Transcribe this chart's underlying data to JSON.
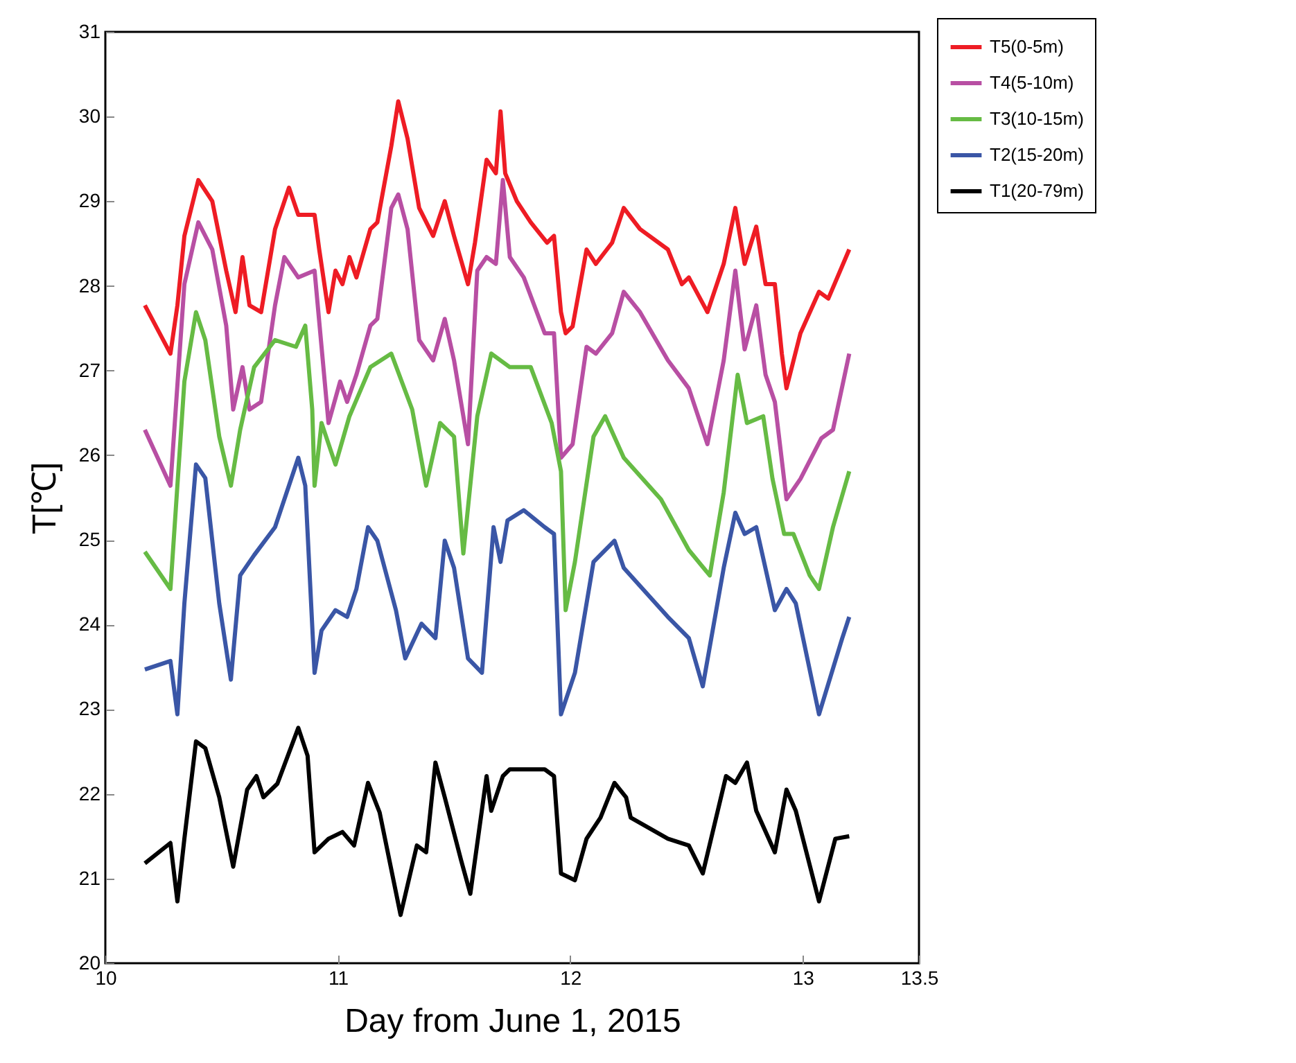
{
  "chart_data": {
    "type": "line",
    "xlabel": "Day from June 1, 2015",
    "ylabel": "T[℃]",
    "xlim": [
      10,
      13.5
    ],
    "xticks": [
      10,
      11,
      12,
      13,
      13.5
    ],
    "ylim": [
      20,
      31
    ],
    "yticks": [
      20,
      21,
      22,
      23,
      24,
      25,
      26,
      27,
      28,
      29,
      30,
      31
    ],
    "grid": false,
    "legend": "top right",
    "line_style": "solid",
    "marker": "none",
    "series": [
      {
        "name": "T5(0-5m)",
        "color": "#ee1c24",
        "x": [
          10.17,
          10.28,
          10.31,
          10.34,
          10.4,
          10.46,
          10.52,
          10.56,
          10.59,
          10.62,
          10.67,
          10.73,
          10.79,
          10.83,
          10.9,
          10.92,
          10.96,
          10.99,
          11.02,
          11.05,
          11.08,
          11.14,
          11.17,
          11.23,
          11.26,
          11.3,
          11.35,
          11.41,
          11.46,
          11.5,
          11.56,
          11.59,
          11.64,
          11.68,
          11.7,
          11.72,
          11.77,
          11.83,
          11.9,
          11.93,
          11.96,
          11.98,
          12.01,
          12.07,
          12.11,
          12.18,
          12.23,
          12.3,
          12.42,
          12.48,
          12.51,
          12.59,
          12.66,
          12.71,
          12.75,
          12.8,
          12.84,
          12.88,
          12.91,
          12.93,
          12.99,
          13.07,
          13.11,
          13.2
        ],
        "values": [
          27.77,
          27.2,
          27.77,
          28.59,
          29.25,
          29.0,
          28.18,
          27.69,
          28.34,
          27.77,
          27.69,
          28.67,
          29.16,
          28.84,
          28.84,
          28.43,
          27.69,
          28.18,
          28.02,
          28.34,
          28.1,
          28.67,
          28.75,
          29.65,
          30.18,
          29.74,
          28.92,
          28.59,
          29.0,
          28.59,
          28.02,
          28.51,
          29.49,
          29.33,
          30.06,
          29.33,
          29.0,
          28.75,
          28.51,
          28.59,
          27.69,
          27.44,
          27.52,
          28.43,
          28.26,
          28.51,
          28.92,
          28.67,
          28.43,
          28.02,
          28.1,
          27.69,
          28.26,
          28.92,
          28.26,
          28.7,
          28.02,
          28.02,
          27.2,
          26.79,
          27.44,
          27.93,
          27.85,
          28.43
        ]
      },
      {
        "name": "T4(5-10m)",
        "color": "#b84fa3",
        "x": [
          10.17,
          10.28,
          10.34,
          10.4,
          10.46,
          10.52,
          10.55,
          10.59,
          10.62,
          10.67,
          10.73,
          10.77,
          10.83,
          10.9,
          10.93,
          10.96,
          11.01,
          11.04,
          11.08,
          11.14,
          11.17,
          11.23,
          11.26,
          11.3,
          11.35,
          11.41,
          11.46,
          11.5,
          11.56,
          11.6,
          11.64,
          11.68,
          11.71,
          11.74,
          11.8,
          11.89,
          11.93,
          11.96,
          12.01,
          12.07,
          12.11,
          12.18,
          12.23,
          12.3,
          12.42,
          12.51,
          12.59,
          12.66,
          12.71,
          12.75,
          12.8,
          12.84,
          12.88,
          12.93,
          12.99,
          13.08,
          13.13,
          13.2
        ],
        "values": [
          26.3,
          25.64,
          28.02,
          28.75,
          28.43,
          27.53,
          26.54,
          27.04,
          26.54,
          26.63,
          27.77,
          28.34,
          28.1,
          28.18,
          27.28,
          26.38,
          26.87,
          26.63,
          26.95,
          27.53,
          27.61,
          28.92,
          29.08,
          28.67,
          27.36,
          27.12,
          27.61,
          27.12,
          26.13,
          28.18,
          28.34,
          28.26,
          29.25,
          28.34,
          28.1,
          27.44,
          27.44,
          25.97,
          26.13,
          27.28,
          27.2,
          27.44,
          27.93,
          27.69,
          27.12,
          26.79,
          26.13,
          27.12,
          28.18,
          27.25,
          27.77,
          26.95,
          26.63,
          25.48,
          25.72,
          26.2,
          26.3,
          27.2
        ]
      },
      {
        "name": "T3(10-15m)",
        "color": "#66bb44",
        "x": [
          10.17,
          10.28,
          10.34,
          10.39,
          10.43,
          10.49,
          10.54,
          10.58,
          10.64,
          10.73,
          10.82,
          10.86,
          10.89,
          10.9,
          10.93,
          10.99,
          11.05,
          11.14,
          11.23,
          11.32,
          11.38,
          11.44,
          11.5,
          11.54,
          11.6,
          11.66,
          11.74,
          11.83,
          11.92,
          11.96,
          11.98,
          12.02,
          12.1,
          12.15,
          12.23,
          12.39,
          12.51,
          12.6,
          12.66,
          12.72,
          12.76,
          12.83,
          12.87,
          12.92,
          12.96,
          13.03,
          13.07,
          13.13,
          13.2
        ],
        "values": [
          24.86,
          24.42,
          26.87,
          27.69,
          27.36,
          26.22,
          25.64,
          26.3,
          27.04,
          27.36,
          27.28,
          27.53,
          26.54,
          25.64,
          26.38,
          25.89,
          26.46,
          27.04,
          27.2,
          26.54,
          25.64,
          26.38,
          26.22,
          24.84,
          26.46,
          27.2,
          27.04,
          27.04,
          26.38,
          25.81,
          24.17,
          24.74,
          26.22,
          26.46,
          25.97,
          25.48,
          24.88,
          24.58,
          25.56,
          26.95,
          26.38,
          26.46,
          25.72,
          25.07,
          25.07,
          24.58,
          24.42,
          25.15,
          25.81
        ]
      },
      {
        "name": "T2(15-20m)",
        "color": "#3a56a6",
        "x": [
          10.17,
          10.28,
          10.31,
          10.34,
          10.39,
          10.43,
          10.49,
          10.54,
          10.58,
          10.64,
          10.73,
          10.83,
          10.86,
          10.9,
          10.93,
          10.99,
          11.04,
          11.08,
          11.13,
          11.17,
          11.25,
          11.29,
          11.36,
          11.42,
          11.46,
          11.5,
          11.56,
          11.62,
          11.67,
          11.7,
          11.73,
          11.8,
          11.89,
          11.93,
          11.96,
          12.02,
          12.1,
          12.19,
          12.23,
          12.42,
          12.51,
          12.57,
          12.66,
          12.71,
          12.75,
          12.8,
          12.88,
          12.93,
          12.97,
          13.07,
          13.17,
          13.2
        ],
        "values": [
          23.47,
          23.57,
          22.94,
          24.25,
          25.89,
          25.73,
          24.25,
          23.35,
          24.58,
          24.82,
          25.15,
          25.97,
          25.64,
          23.43,
          23.93,
          24.17,
          24.09,
          24.42,
          25.15,
          24.99,
          24.17,
          23.6,
          24.01,
          23.84,
          24.99,
          24.67,
          23.6,
          23.43,
          25.15,
          24.74,
          25.23,
          25.35,
          25.15,
          25.07,
          22.94,
          23.43,
          24.74,
          24.99,
          24.67,
          24.09,
          23.84,
          23.27,
          24.67,
          25.32,
          25.07,
          25.15,
          24.17,
          24.42,
          24.25,
          22.94,
          23.84,
          24.09
        ]
      },
      {
        "name": "T1(20-79m)",
        "color": "#000000",
        "x": [
          10.17,
          10.28,
          10.31,
          10.34,
          10.39,
          10.43,
          10.49,
          10.55,
          10.61,
          10.65,
          10.68,
          10.74,
          10.83,
          10.87,
          10.9,
          10.96,
          11.02,
          11.07,
          11.13,
          11.18,
          11.27,
          11.34,
          11.38,
          11.42,
          11.46,
          11.53,
          11.57,
          11.64,
          11.66,
          11.71,
          11.74,
          11.89,
          11.93,
          11.96,
          12.02,
          12.07,
          12.13,
          12.19,
          12.24,
          12.26,
          12.42,
          12.51,
          12.57,
          12.67,
          12.71,
          12.76,
          12.8,
          12.88,
          12.93,
          12.97,
          13.07,
          13.14,
          13.2
        ],
        "values": [
          21.18,
          21.42,
          20.73,
          21.47,
          22.62,
          22.54,
          21.96,
          21.14,
          22.05,
          22.21,
          21.96,
          22.12,
          22.78,
          22.45,
          21.31,
          21.47,
          21.55,
          21.39,
          22.13,
          21.78,
          20.57,
          21.39,
          21.31,
          22.37,
          21.96,
          21.22,
          20.82,
          22.21,
          21.8,
          22.21,
          22.29,
          22.29,
          22.21,
          21.06,
          20.98,
          21.47,
          21.72,
          22.13,
          21.96,
          21.72,
          21.47,
          21.39,
          21.06,
          22.21,
          22.13,
          22.37,
          21.8,
          21.31,
          22.05,
          21.8,
          20.73,
          21.47,
          21.5
        ]
      }
    ]
  }
}
